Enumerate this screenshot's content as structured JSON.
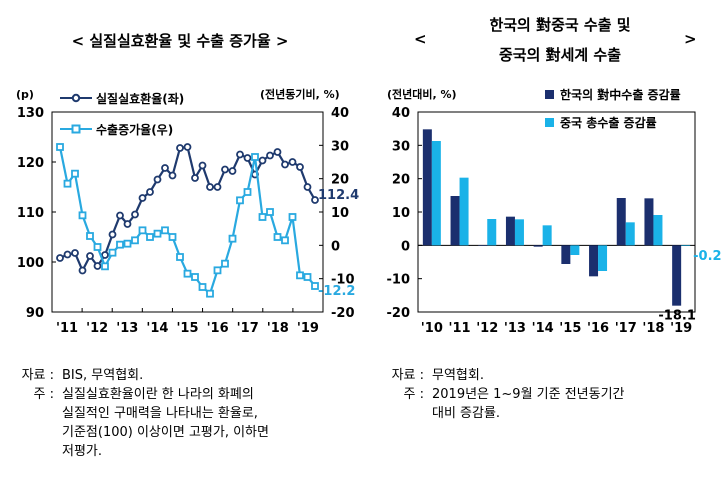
{
  "left": {
    "title": "< 실질실효환율 및 수출 증가율 >",
    "notes": [
      {
        "label": "자료 :",
        "text": "BIS, 무역협회."
      },
      {
        "label": "주 :",
        "text": "실질실효환율이란 한 나라의 화폐의"
      },
      {
        "label": "",
        "text": "실질적인 구매력을 나타내는 환율로,"
      },
      {
        "label": "",
        "text": "기준점(100) 이상이면 고평가, 이하면"
      },
      {
        "label": "",
        "text": "저평가."
      }
    ]
  },
  "right": {
    "title_line1": "한국의 對중국 수출 및",
    "title_line2": "중국의 對세계 수출",
    "title_left": "<",
    "title_right": ">",
    "notes": [
      {
        "label": "자료 :",
        "text": "무역협회."
      },
      {
        "label": "주 :",
        "text": "2019년은 1~9월 기준 전년동기간"
      },
      {
        "label": "",
        "text": "대비 증감률."
      }
    ]
  },
  "chart_data": [
    {
      "type": "line",
      "left_unit": "(p)",
      "right_unit": "(전년동기비, %)",
      "x_tick_labels": [
        "'11",
        "'12",
        "'13",
        "'14",
        "'15",
        "'16",
        "'17",
        "'18",
        "'19"
      ],
      "ylim_left": [
        90,
        130
      ],
      "yticks_left": [
        90,
        100,
        110,
        120,
        130
      ],
      "ylim_right": [
        -20,
        40
      ],
      "yticks_right": [
        -20,
        -10,
        0,
        10,
        20,
        30,
        40
      ],
      "legend_position": "top-left",
      "series": [
        {
          "name": "실질실효환율(좌)",
          "axis": "left",
          "color": "#1f3a6e",
          "marker": "circle",
          "end_label": "112.4",
          "values": [
            100.8,
            101.5,
            101.8,
            98.3,
            101.2,
            99.2,
            101.4,
            105.5,
            109.3,
            107.6,
            109.5,
            112.8,
            114.0,
            116.5,
            118.8,
            117.3,
            122.8,
            123.0,
            116.8,
            119.3,
            115.0,
            115.0,
            118.5,
            118.2,
            121.5,
            120.8,
            117.5,
            120.3,
            121.3,
            122.0,
            119.5,
            120.0,
            119.0,
            115.0,
            112.4
          ]
        },
        {
          "name": "수출증가율(우)",
          "axis": "right",
          "color": "#29a9e0",
          "marker": "square",
          "end_label": "-12.2",
          "values": [
            29.5,
            18.5,
            21.5,
            9.0,
            2.8,
            -0.5,
            -6.3,
            -2.2,
            0.2,
            0.5,
            1.5,
            4.5,
            2.5,
            3.5,
            4.5,
            2.5,
            -3.5,
            -8.5,
            -9.5,
            -12.5,
            -14.5,
            -7.5,
            -5.5,
            2.0,
            13.5,
            16.0,
            26.5,
            8.5,
            10.0,
            2.5,
            1.5,
            8.5,
            -9.0,
            -9.5,
            -12.2
          ]
        }
      ]
    },
    {
      "type": "bar",
      "unit": "(전년대비, %)",
      "categories": [
        "'10",
        "'11",
        "'12",
        "'13",
        "'14",
        "'15",
        "'16",
        "'17",
        "'18",
        "'19"
      ],
      "ylim": [
        -20,
        40
      ],
      "yticks": [
        -20,
        -10,
        0,
        10,
        20,
        30,
        40
      ],
      "legend_position": "top-right",
      "series": [
        {
          "name": "한국의 對中수출 증감률",
          "color": "#1b2f6e",
          "values": [
            34.8,
            14.8,
            0.1,
            8.6,
            -0.4,
            -5.6,
            -9.3,
            14.2,
            14.1,
            -18.1
          ]
        },
        {
          "name": "중국 총수출 증감률",
          "color": "#1ab2e8",
          "values": [
            31.3,
            20.3,
            7.9,
            7.8,
            6.0,
            -2.9,
            -7.7,
            6.9,
            9.1,
            -0.2
          ]
        }
      ],
      "data_labels": [
        {
          "series": 0,
          "index": 9,
          "text": "-18.1"
        },
        {
          "series": 1,
          "index": 9,
          "text": "-0.2"
        }
      ]
    }
  ]
}
